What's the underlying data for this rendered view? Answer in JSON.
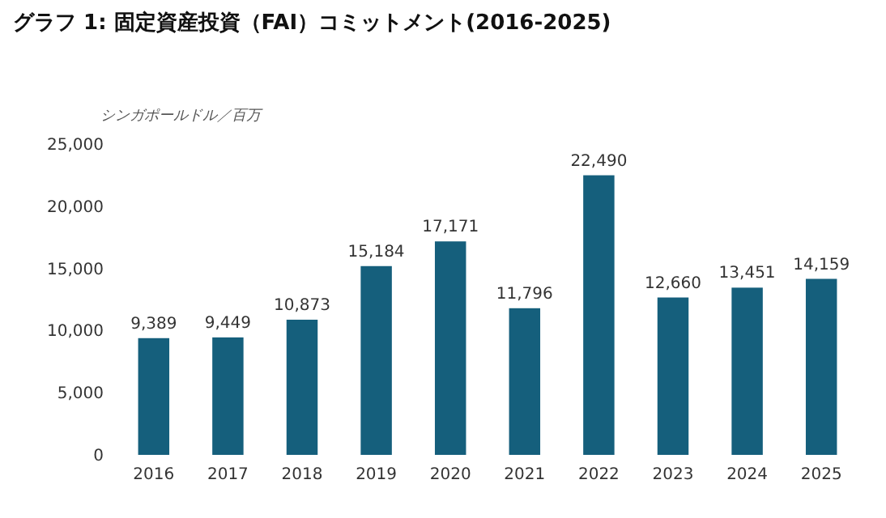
{
  "chart_data": {
    "type": "bar",
    "title": "グラフ 1: 固定資産投資（FAI）コミットメント(2016-2025)",
    "ylabel": "シンガポールドル／百万",
    "categories": [
      "2016",
      "2017",
      "2018",
      "2019",
      "2020",
      "2021",
      "2022",
      "2023",
      "2024",
      "2025"
    ],
    "values": [
      9389,
      9449,
      10873,
      15184,
      17171,
      11796,
      22490,
      12660,
      13451,
      14159
    ],
    "value_labels": [
      "9,389",
      "9,449",
      "10,873",
      "15,184",
      "17,171",
      "11,796",
      "22,490",
      "12,660",
      "13,451",
      "14,159"
    ],
    "color": "#155f7c",
    "ylim": [
      0,
      25000
    ],
    "yticks": [
      0,
      {
        "value": 5000,
        "label": "5,000"
      },
      {
        "value": 10000,
        "label": "10,000"
      },
      {
        "value": 15000,
        "label": "15,000"
      },
      {
        "value": 20000,
        "label": "20,000"
      },
      {
        "value": 25000,
        "label": "25,000"
      }
    ]
  }
}
